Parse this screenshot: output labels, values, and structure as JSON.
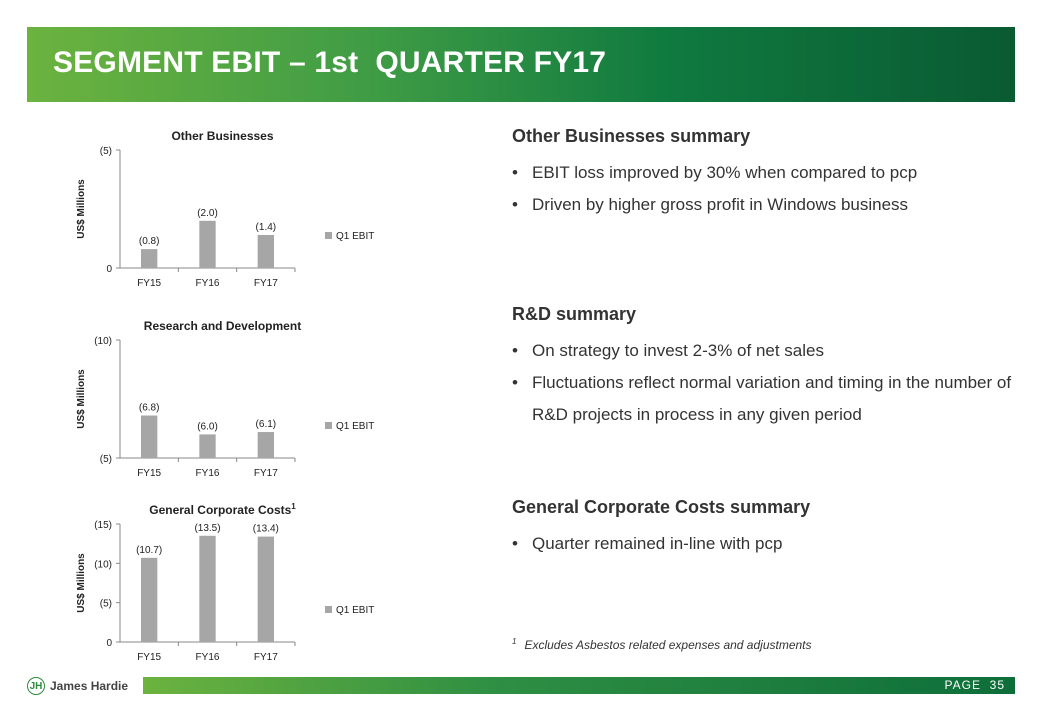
{
  "slide": {
    "title": "SEGMENT EBIT – 1st  QUARTER FY17",
    "page_label": "PAGE",
    "page_number": "35",
    "brand": "James Hardie",
    "colors": {
      "banner_start": "#6cb33f",
      "banner_end": "#0a5a32",
      "bar": "#a6a6a6"
    }
  },
  "summaries": [
    {
      "heading": "Other Businesses summary",
      "bullets": [
        "EBIT loss improved by 30% when compared to pcp",
        "Driven by higher gross profit in Windows business"
      ]
    },
    {
      "heading": "R&D summary",
      "bullets": [
        "On strategy to invest 2-3% of net sales",
        "Fluctuations reflect normal variation and timing in the number of R&D projects in process in any given period"
      ]
    },
    {
      "heading": "General Corporate Costs summary",
      "bullets": [
        "Quarter remained in-line with pcp"
      ]
    }
  ],
  "footnote": {
    "marker": "1",
    "text": "Excludes Asbestos related expenses and adjustments"
  },
  "chart_data": [
    {
      "type": "bar",
      "title": "Other Businesses",
      "title_sup": "",
      "ylabel": "US$ Millions",
      "categories": [
        "FY15",
        "FY16",
        "FY17"
      ],
      "series": [
        {
          "name": "Q1 EBIT",
          "values": [
            -0.8,
            -2.0,
            -1.4
          ],
          "labels": [
            "(0.8)",
            "(2.0)",
            "(1.4)"
          ]
        }
      ],
      "ylim": [
        0,
        -5
      ],
      "yticks": [
        0,
        -5
      ],
      "ytick_labels": [
        "0",
        "(5)"
      ],
      "grid": false,
      "legend": "right"
    },
    {
      "type": "bar",
      "title": "Research and Development",
      "title_sup": "",
      "ylabel": "US$ Millions",
      "categories": [
        "FY15",
        "FY16",
        "FY17"
      ],
      "series": [
        {
          "name": "Q1 EBIT",
          "values": [
            -6.8,
            -6.0,
            -6.1
          ],
          "labels": [
            "(6.8)",
            "(6.0)",
            "(6.1)"
          ]
        }
      ],
      "ylim": [
        -5,
        -10
      ],
      "yticks": [
        -5,
        -10
      ],
      "ytick_labels": [
        "(5)",
        "(10)"
      ],
      "grid": false,
      "legend": "right"
    },
    {
      "type": "bar",
      "title": "General Corporate Costs",
      "title_sup": "1",
      "ylabel": "US$ Millions",
      "categories": [
        "FY15",
        "FY16",
        "FY17"
      ],
      "series": [
        {
          "name": "Q1 EBIT",
          "values": [
            -10.7,
            -13.5,
            -13.4
          ],
          "labels": [
            "(10.7)",
            "(13.5)",
            "(13.4)"
          ]
        }
      ],
      "ylim": [
        0,
        -15
      ],
      "yticks": [
        0,
        -5,
        -10,
        -15
      ],
      "ytick_labels": [
        "0",
        "(5)",
        "(10)",
        "(15)"
      ],
      "grid": false,
      "legend": "right"
    }
  ]
}
